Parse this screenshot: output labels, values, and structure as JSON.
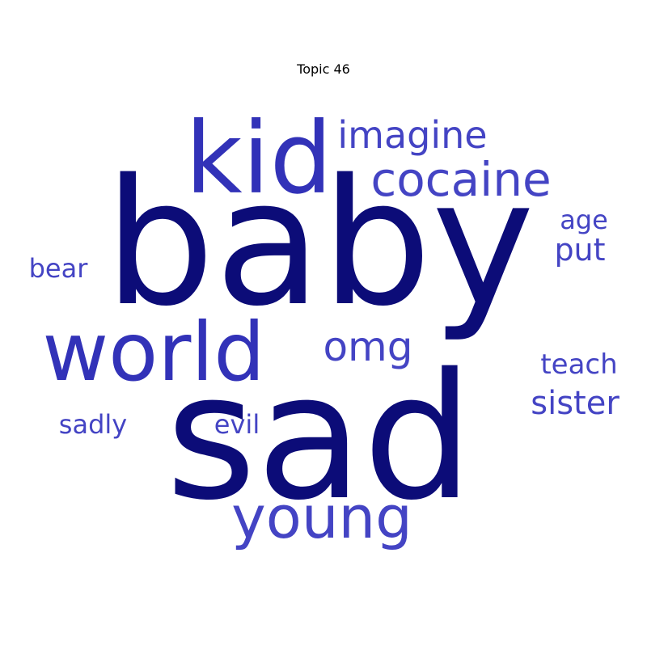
{
  "chart_data": {
    "type": "wordcloud",
    "title": "Topic 46",
    "colors": {
      "dark": "#0c0c78",
      "mid": "#3232b8",
      "light": "#4444c4"
    },
    "words": [
      {
        "text": "baby",
        "weight": 1.0,
        "color": "dark"
      },
      {
        "text": "sad",
        "weight": 0.95,
        "color": "dark"
      },
      {
        "text": "kid",
        "weight": 0.55,
        "color": "mid"
      },
      {
        "text": "world",
        "weight": 0.5,
        "color": "mid"
      },
      {
        "text": "young",
        "weight": 0.38,
        "color": "light"
      },
      {
        "text": "cocaine",
        "weight": 0.3,
        "color": "light"
      },
      {
        "text": "omg",
        "weight": 0.26,
        "color": "light"
      },
      {
        "text": "imagine",
        "weight": 0.24,
        "color": "light"
      },
      {
        "text": "sister",
        "weight": 0.2,
        "color": "light"
      },
      {
        "text": "put",
        "weight": 0.19,
        "color": "light"
      },
      {
        "text": "teach",
        "weight": 0.16,
        "color": "light"
      },
      {
        "text": "age",
        "weight": 0.15,
        "color": "light"
      },
      {
        "text": "bear",
        "weight": 0.15,
        "color": "light"
      },
      {
        "text": "sadly",
        "weight": 0.15,
        "color": "light"
      },
      {
        "text": "evil",
        "weight": 0.14,
        "color": "light"
      }
    ]
  }
}
